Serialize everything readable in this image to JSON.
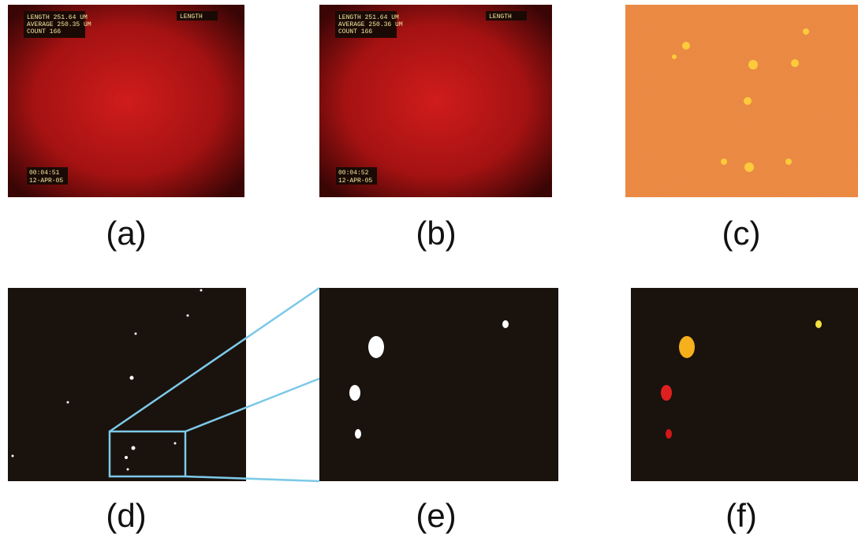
{
  "panels": [
    {
      "label": "(a)",
      "overlay": {
        "top_right": "LENGTH",
        "lines": [
          "LENGTH 251.64 UM",
          "AVERAGE 250.35 UM",
          "COUNT 166"
        ],
        "time": "00:04:51",
        "date": "12-APR-05"
      }
    },
    {
      "label": "(b)",
      "overlay": {
        "top_right": "LENGTH",
        "lines": [
          "LENGTH 251.64 UM",
          "AVERAGE 250.36 UM",
          "COUNT 166"
        ],
        "time": "00:04:52",
        "date": "12-APR-05"
      }
    },
    {
      "label": "(c)"
    },
    {
      "label": "(d)"
    },
    {
      "label": "(e)"
    },
    {
      "label": "(f)"
    }
  ]
}
